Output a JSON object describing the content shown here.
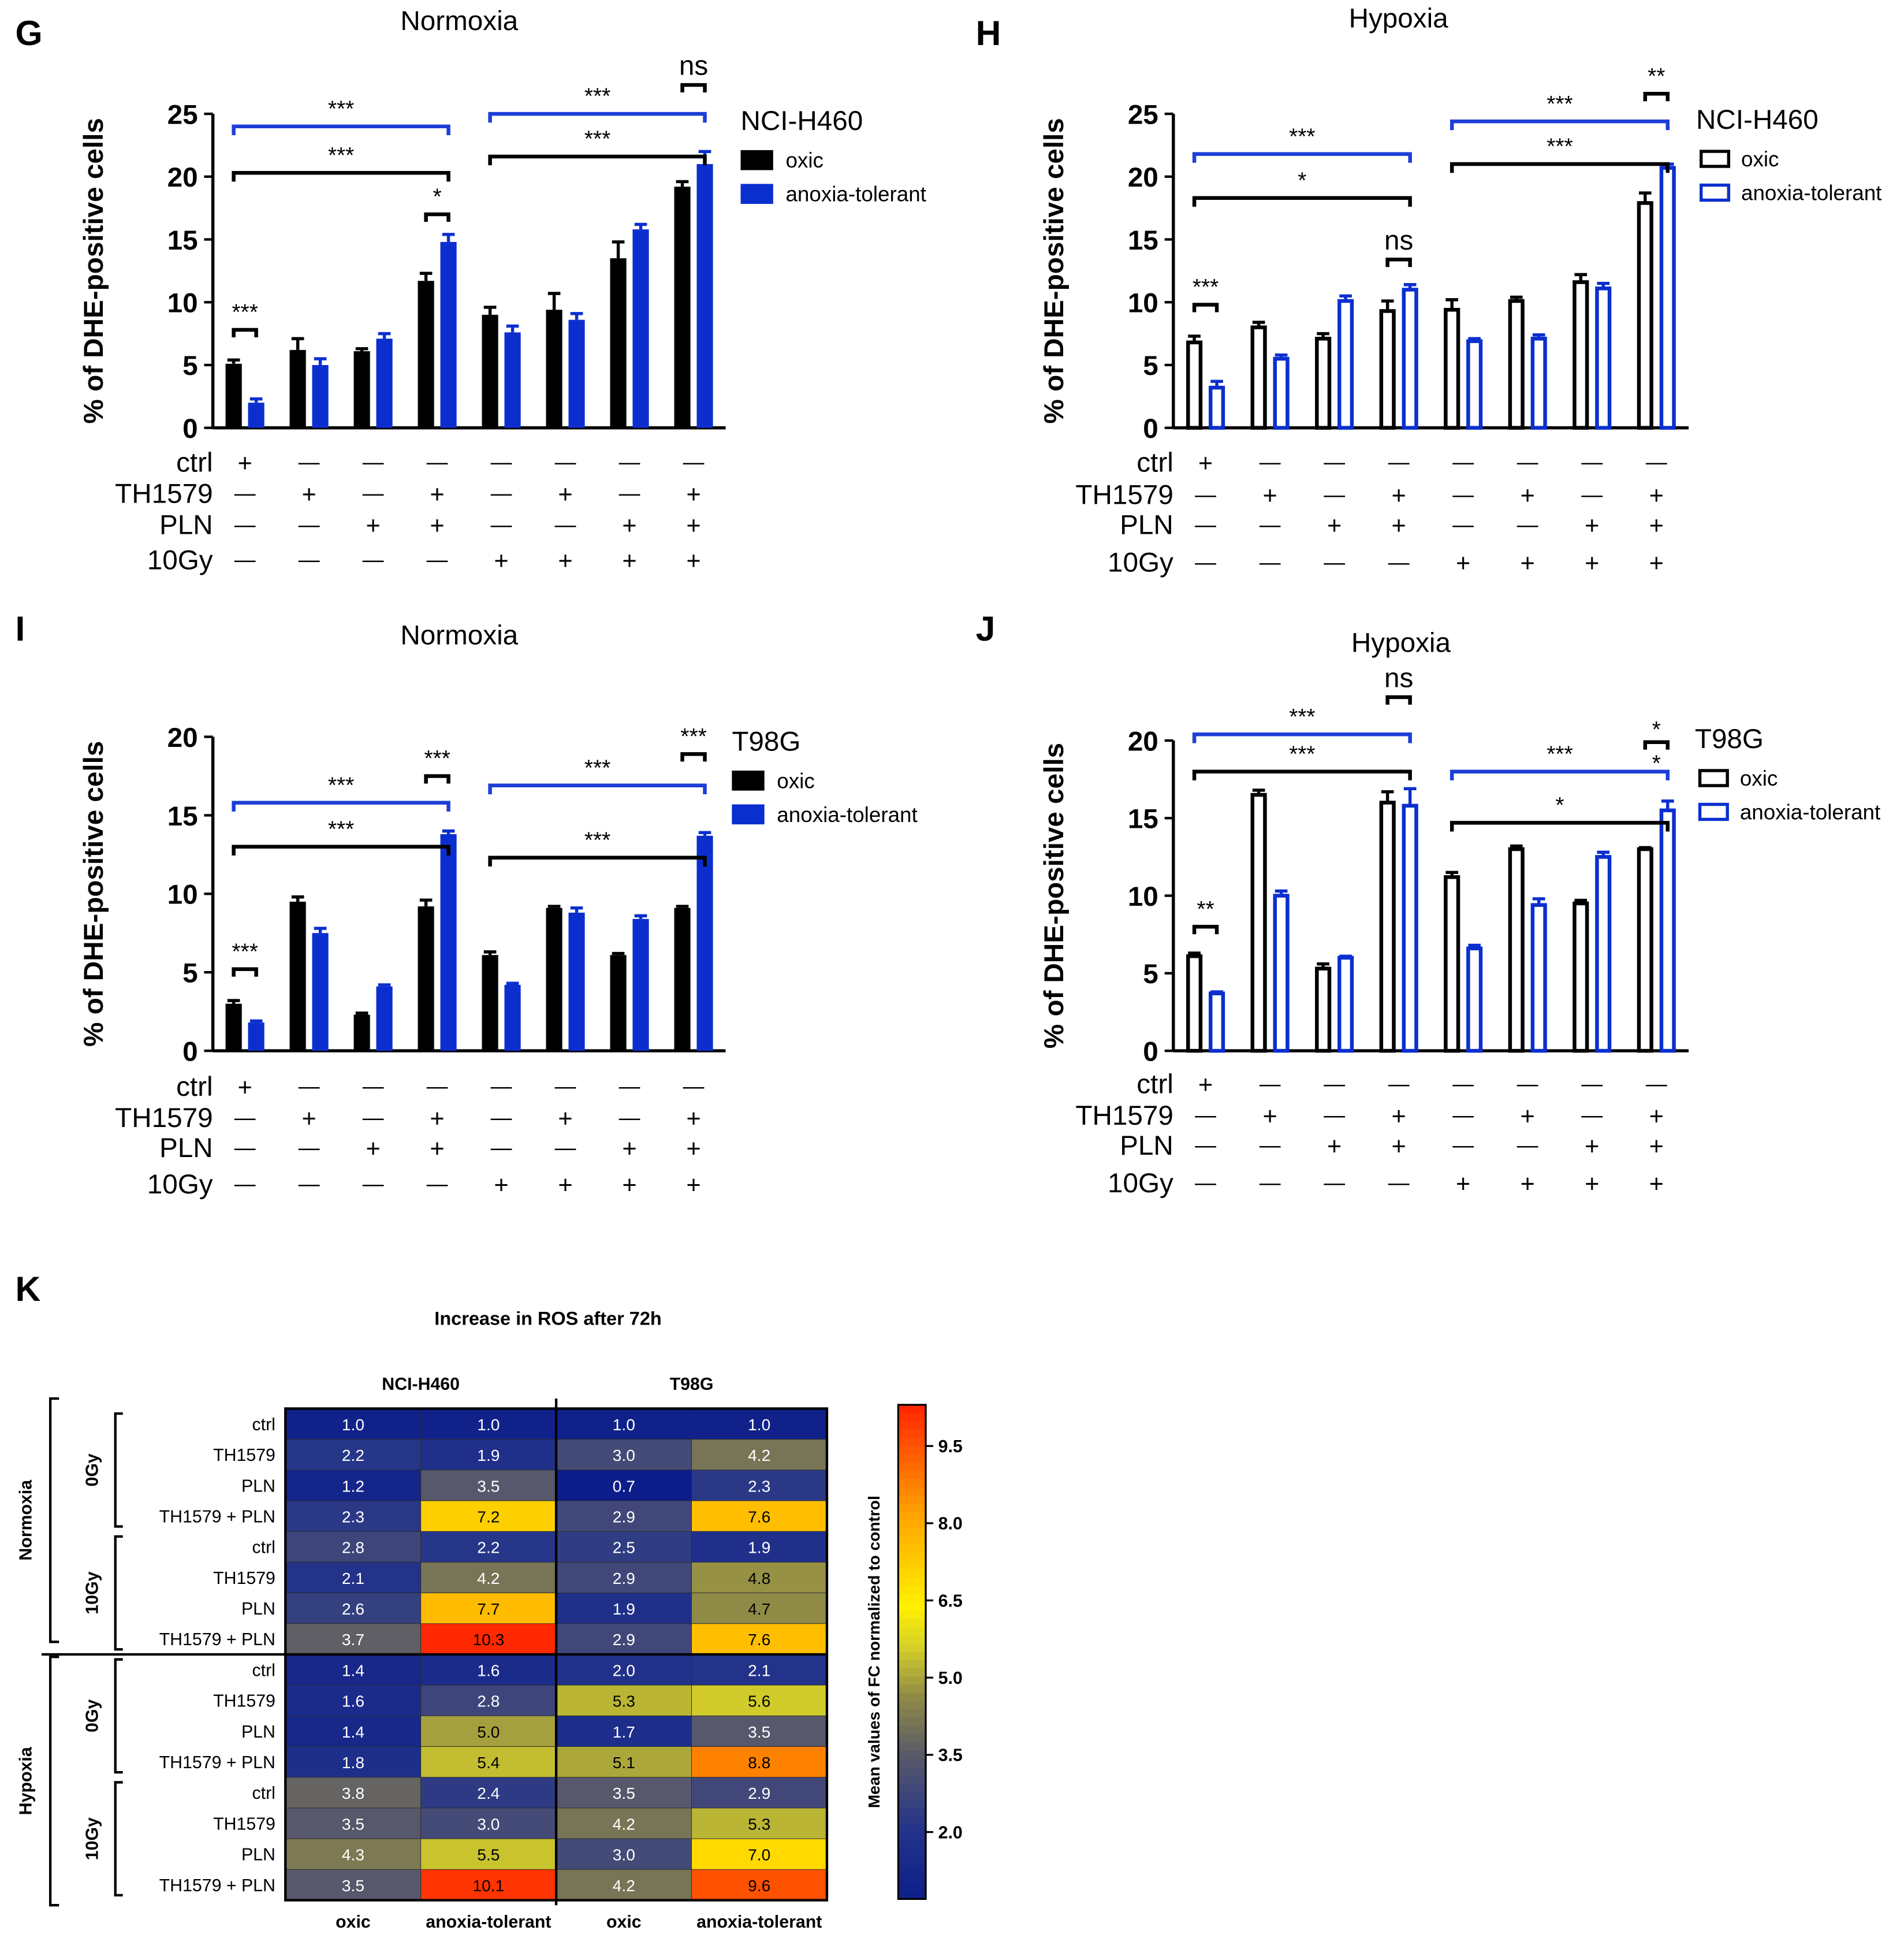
{
  "figure": {
    "colors": {
      "black": "#000000",
      "blue": "#0b2fcf",
      "bracket_blue": "#1d3fd6"
    },
    "row_labels": [
      "ctrl",
      "TH1579",
      "PLN",
      "10Gy"
    ],
    "row_signs": {
      "ctrl": [
        "+",
        "—",
        "—",
        "—",
        "—",
        "—",
        "—",
        "—"
      ],
      "TH1579": [
        "—",
        "+",
        "—",
        "+",
        "—",
        "+",
        "—",
        "+"
      ],
      "PLN": [
        "—",
        "—",
        "+",
        "+",
        "—",
        "—",
        "+",
        "+"
      ],
      "10Gy": [
        "—",
        "—",
        "—",
        "—",
        "+",
        "+",
        "+",
        "+"
      ]
    }
  },
  "chart_data": [
    {
      "panel": "G",
      "type": "bar",
      "title": "Normoxia",
      "ylabel": "% of DHE-positive cells",
      "ylim": [
        0,
        25
      ],
      "yticks": [
        0,
        5,
        10,
        15,
        20,
        25
      ],
      "legend_title": "NCI-H460",
      "hollow": false,
      "series": [
        {
          "name": "oxic",
          "values": [
            5.1,
            6.2,
            6.1,
            11.7,
            9.0,
            9.4,
            13.5,
            19.2
          ],
          "errors": [
            0.3,
            0.9,
            0.2,
            0.6,
            0.6,
            1.3,
            1.3,
            0.4
          ]
        },
        {
          "name": "anoxia-tolerant",
          "values": [
            2.0,
            5.0,
            7.1,
            14.8,
            7.6,
            8.6,
            15.8,
            21.0
          ],
          "errors": [
            0.3,
            0.5,
            0.4,
            0.6,
            0.5,
            0.5,
            0.4,
            1.0
          ]
        }
      ],
      "significance": [
        {
          "label": "***",
          "from": 0,
          "to": 3,
          "level": 20.3,
          "color": "black"
        },
        {
          "label": "***",
          "from": 0,
          "to": 3,
          "level": 24.0,
          "color": "blue"
        },
        {
          "label": "***",
          "from": 4,
          "to": 7,
          "level": 21.6,
          "color": "black"
        },
        {
          "label": "***",
          "from": 4,
          "to": 7,
          "level": 25.0,
          "color": "blue"
        },
        {
          "label": "***",
          "pair": 0,
          "level": 7.8
        },
        {
          "label": "*",
          "pair": 3,
          "level": 17.0
        },
        {
          "label": "ns",
          "pair": 7,
          "level": 27.3
        }
      ]
    },
    {
      "panel": "H",
      "type": "bar",
      "title": "Hypoxia",
      "ylabel": "% of DHE-positive cells",
      "ylim": [
        0,
        25
      ],
      "yticks": [
        0,
        5,
        10,
        15,
        20,
        25
      ],
      "legend_title": "NCI-H460",
      "hollow": true,
      "series": [
        {
          "name": "oxic",
          "values": [
            6.8,
            8.0,
            7.1,
            9.3,
            9.4,
            10.1,
            11.6,
            17.9
          ],
          "errors": [
            0.5,
            0.4,
            0.4,
            0.8,
            0.8,
            0.3,
            0.6,
            0.8
          ]
        },
        {
          "name": "anoxia-tolerant",
          "values": [
            3.2,
            5.5,
            10.1,
            11.0,
            6.9,
            7.1,
            11.1,
            20.7
          ],
          "errors": [
            0.5,
            0.3,
            0.4,
            0.4,
            0.2,
            0.3,
            0.4,
            0.3
          ]
        }
      ],
      "significance": [
        {
          "label": "*",
          "from": 0,
          "to": 3,
          "level": 18.3,
          "color": "black"
        },
        {
          "label": "***",
          "from": 0,
          "to": 3,
          "level": 21.8,
          "color": "blue"
        },
        {
          "label": "***",
          "from": 4,
          "to": 7,
          "level": 21.0,
          "color": "black"
        },
        {
          "label": "***",
          "from": 4,
          "to": 7,
          "level": 24.4,
          "color": "blue"
        },
        {
          "label": "***",
          "pair": 0,
          "level": 9.8
        },
        {
          "label": "ns",
          "pair": 3,
          "level": 13.4
        },
        {
          "label": "**",
          "pair": 7,
          "level": 26.6
        }
      ]
    },
    {
      "panel": "I",
      "type": "bar",
      "title": "Normoxia",
      "ylabel": "% of DHE-positive cells",
      "ylim": [
        0,
        20
      ],
      "yticks": [
        0,
        5,
        10,
        15,
        20
      ],
      "legend_title": "T98G",
      "hollow": false,
      "series": [
        {
          "name": "oxic",
          "values": [
            3.0,
            9.5,
            2.3,
            9.2,
            6.1,
            9.1,
            6.1,
            9.1
          ],
          "errors": [
            0.2,
            0.3,
            0.1,
            0.4,
            0.2,
            0.1,
            0.1,
            0.1
          ]
        },
        {
          "name": "anoxia-tolerant",
          "values": [
            1.8,
            7.5,
            4.1,
            13.8,
            4.2,
            8.8,
            8.4,
            13.7
          ],
          "errors": [
            0.1,
            0.3,
            0.1,
            0.2,
            0.1,
            0.3,
            0.2,
            0.2
          ]
        }
      ],
      "significance": [
        {
          "label": "***",
          "from": 0,
          "to": 3,
          "level": 13.0,
          "color": "black"
        },
        {
          "label": "***",
          "from": 0,
          "to": 3,
          "level": 15.8,
          "color": "blue"
        },
        {
          "label": "***",
          "from": 4,
          "to": 7,
          "level": 12.3,
          "color": "black"
        },
        {
          "label": "***",
          "from": 4,
          "to": 7,
          "level": 16.9,
          "color": "blue"
        },
        {
          "label": "***",
          "pair": 0,
          "level": 5.2
        },
        {
          "label": "***",
          "pair": 3,
          "level": 17.5
        },
        {
          "label": "***",
          "pair": 7,
          "level": 18.9
        }
      ]
    },
    {
      "panel": "J",
      "type": "bar",
      "title": "Hypoxia",
      "ylabel": "% of DHE-positive cells",
      "ylim": [
        0,
        20
      ],
      "yticks": [
        0,
        5,
        10,
        15,
        20
      ],
      "legend_title": "T98G",
      "hollow": true,
      "series": [
        {
          "name": "oxic",
          "values": [
            6.1,
            16.5,
            5.3,
            16.0,
            11.2,
            13.0,
            9.5,
            13.0
          ],
          "errors": [
            0.2,
            0.3,
            0.3,
            0.7,
            0.3,
            0.2,
            0.2,
            0.1
          ]
        },
        {
          "name": "anoxia-tolerant",
          "values": [
            3.7,
            10.0,
            6.0,
            15.8,
            6.6,
            9.4,
            12.5,
            15.5
          ],
          "errors": [
            0.1,
            0.3,
            0.1,
            1.1,
            0.2,
            0.4,
            0.3,
            0.6
          ]
        }
      ],
      "significance": [
        {
          "label": "***",
          "from": 0,
          "to": 3,
          "level": 18.0,
          "color": "black"
        },
        {
          "label": "***",
          "from": 0,
          "to": 3,
          "level": 20.4,
          "color": "blue"
        },
        {
          "label": "*",
          "from": 4,
          "to": 7,
          "level": 14.7,
          "color": "black"
        },
        {
          "label": "***",
          "from": 4,
          "to": 7,
          "level": 18.0,
          "color": "blue"
        },
        {
          "label": "**",
          "pair": 0,
          "level": 8.0
        },
        {
          "label": "ns",
          "pair": 3,
          "level": 22.8
        },
        {
          "label": "**",
          "pair": 7,
          "level": 19.9,
          "stacked": true
        }
      ]
    },
    {
      "panel": "K",
      "type": "heatmap",
      "title": "Increase in ROS after 72h",
      "cell_lines": [
        "NCI-H460",
        "T98G"
      ],
      "columns": [
        "oxic",
        "anoxia-tolerant",
        "oxic",
        "anoxia-tolerant"
      ],
      "conditions": [
        "Normoxia",
        "Hypoxia"
      ],
      "doses": [
        "0Gy",
        "10Gy"
      ],
      "rows": [
        "ctrl",
        "TH1579",
        "PLN",
        "TH1579 + PLN",
        "ctrl",
        "TH1579",
        "PLN",
        "TH1579 + PLN",
        "ctrl",
        "TH1579",
        "PLN",
        "TH1579 + PLN",
        "ctrl",
        "TH1579",
        "PLN",
        "TH1579 + PLN"
      ],
      "values": [
        [
          "1.0",
          "1.0",
          "1.0",
          "1.0"
        ],
        [
          "2.2",
          "1.9",
          "3.0",
          "4.2"
        ],
        [
          "1.2",
          "3.5",
          "0.7",
          "2.3"
        ],
        [
          "2.3",
          "7.2",
          "2.9",
          "7.6"
        ],
        [
          "2.8",
          "2.2",
          "2.5",
          "1.9"
        ],
        [
          "2.1",
          "4.2",
          "2.9",
          "4.8"
        ],
        [
          "2.6",
          "7.7",
          "1.9",
          "4.7"
        ],
        [
          "3.7",
          "10.3",
          "2.9",
          "7.6"
        ],
        [
          "1.4",
          "1.6",
          "2.0",
          "2.1"
        ],
        [
          "1.6",
          "2.8",
          "5.3",
          "5.6"
        ],
        [
          "1.4",
          "5.0",
          "1.7",
          "3.5"
        ],
        [
          "1.8",
          "5.4",
          "5.1",
          "8.8"
        ],
        [
          "3.8",
          "2.4",
          "3.5",
          "2.9"
        ],
        [
          "3.5",
          "3.0",
          "4.2",
          "5.3"
        ],
        [
          "4.3",
          "5.5",
          "3.0",
          "7.0"
        ],
        [
          "3.5",
          "10.1",
          "4.2",
          "9.6"
        ]
      ],
      "colorbar": {
        "label": "Mean values of FC normalized to control",
        "range": [
          0.7,
          10.3
        ],
        "ticks": [
          "2.0",
          "3.5",
          "5.0",
          "6.5",
          "8.0",
          "9.5"
        ]
      }
    }
  ]
}
